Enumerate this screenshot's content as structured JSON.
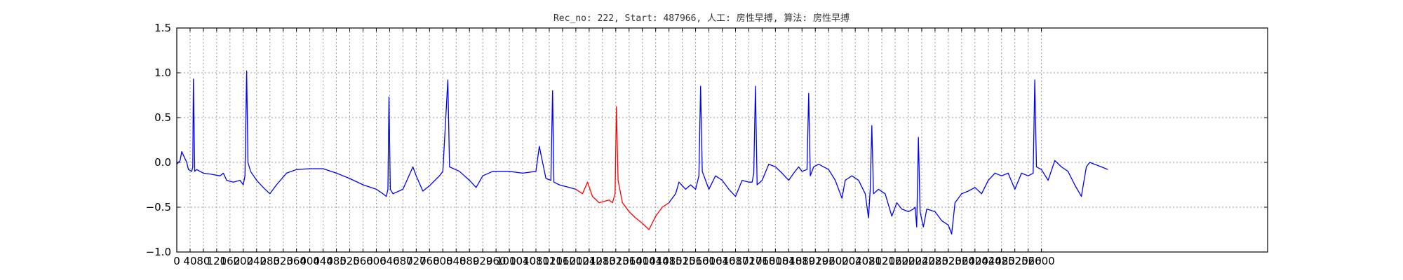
{
  "chart_data": {
    "type": "line",
    "title": "Rec_no: 222, Start: 487966, 人工: 房性早搏, 算法: 房性早搏",
    "xlabel": "",
    "ylabel": "",
    "xlim": [
      0,
      3280
    ],
    "ylim": [
      -1.0,
      1.5
    ],
    "grid": true,
    "x_ticks": [
      0,
      40,
      80,
      120,
      160,
      200,
      240,
      280,
      320,
      360,
      400,
      440,
      480,
      520,
      560,
      600,
      640,
      680,
      720,
      760,
      800,
      840,
      880,
      920,
      960,
      1000,
      1040,
      1080,
      1120,
      1160,
      1200,
      1240,
      1280,
      1320,
      1360,
      1400,
      1440,
      1480,
      1520,
      1560,
      1600,
      1640,
      1680,
      1720,
      1760,
      1800,
      1840,
      1880,
      1920,
      1960,
      2000,
      2040,
      2080,
      2120,
      2160,
      2200,
      2240,
      2280,
      2320,
      2360,
      2400,
      2440,
      2480,
      2520,
      2560,
      2600
    ],
    "x_tick_labels": [
      "0",
      "40",
      "80",
      "120",
      "160",
      "200",
      "240",
      "280",
      "320",
      "360",
      "400",
      "440",
      "480",
      "520",
      "560",
      "600",
      "640",
      "680",
      "720",
      "760",
      "800",
      "840",
      "880",
      "920",
      "960",
      "1000",
      "1040",
      "1080",
      "1120",
      "1160",
      "1200",
      "1240",
      "1280",
      "1320",
      "1360",
      "1400",
      "1440",
      "1480",
      "1520",
      "1560",
      "1600",
      "1640",
      "1680",
      "1720",
      "1760",
      "1800",
      "1840",
      "1880",
      "1920",
      "1960",
      "2000",
      "2040",
      "2080",
      "2120",
      "2160",
      "2200",
      "2240",
      "2280",
      "2320",
      "2360",
      "2400",
      "2440",
      "2480",
      "2520",
      "2560",
      "2600"
    ],
    "y_ticks": [
      -1.0,
      -0.5,
      0.0,
      0.5,
      1.0,
      1.5
    ],
    "y_tick_labels": [
      "−1.0",
      "−0.5",
      "0.0",
      "0.5",
      "1.0",
      "1.5"
    ],
    "series": [
      {
        "color": "#0000ff",
        "points": [
          [
            0,
            -0.02
          ],
          [
            10,
            0.02
          ],
          [
            15,
            0.12
          ],
          [
            20,
            0.08
          ],
          [
            30,
            0.0
          ],
          [
            35,
            -0.08
          ],
          [
            45,
            -0.1
          ],
          [
            48,
            -0.05
          ],
          [
            50,
            0.93
          ],
          [
            54,
            -0.1
          ],
          [
            60,
            -0.08
          ],
          [
            80,
            -0.12
          ],
          [
            100,
            -0.13
          ],
          [
            130,
            -0.15
          ],
          [
            140,
            -0.12
          ],
          [
            150,
            -0.2
          ],
          [
            170,
            -0.22
          ],
          [
            190,
            -0.2
          ],
          [
            200,
            -0.25
          ],
          [
            205,
            -0.15
          ],
          [
            210,
            1.02
          ],
          [
            214,
            0.0
          ],
          [
            222,
            -0.1
          ],
          [
            240,
            -0.2
          ],
          [
            260,
            -0.28
          ],
          [
            280,
            -0.35
          ],
          [
            300,
            -0.25
          ],
          [
            330,
            -0.12
          ],
          [
            360,
            -0.08
          ],
          [
            400,
            -0.07
          ],
          [
            440,
            -0.07
          ],
          [
            480,
            -0.12
          ],
          [
            520,
            -0.18
          ],
          [
            560,
            -0.25
          ],
          [
            600,
            -0.3
          ],
          [
            620,
            -0.35
          ],
          [
            630,
            -0.38
          ],
          [
            635,
            -0.3
          ],
          [
            638,
            0.73
          ],
          [
            642,
            -0.3
          ],
          [
            650,
            -0.35
          ],
          [
            680,
            -0.3
          ],
          [
            710,
            -0.05
          ],
          [
            720,
            -0.15
          ],
          [
            740,
            -0.32
          ],
          [
            760,
            -0.26
          ],
          [
            790,
            -0.15
          ],
          [
            800,
            -0.1
          ],
          [
            815,
            0.92
          ],
          [
            820,
            -0.05
          ],
          [
            850,
            -0.1
          ],
          [
            880,
            -0.2
          ],
          [
            900,
            -0.28
          ],
          [
            920,
            -0.15
          ],
          [
            950,
            -0.1
          ],
          [
            1000,
            -0.1
          ],
          [
            1040,
            -0.12
          ],
          [
            1080,
            -0.1
          ],
          [
            1090,
            0.18
          ],
          [
            1100,
            0.0
          ],
          [
            1110,
            -0.18
          ],
          [
            1125,
            -0.2
          ],
          [
            1130,
            0.8
          ],
          [
            1134,
            -0.22
          ],
          [
            1150,
            -0.25
          ],
          [
            1180,
            -0.28
          ],
          [
            1200,
            -0.3
          ]
        ]
      },
      {
        "color": "#ff0000",
        "points": [
          [
            1200,
            -0.3
          ],
          [
            1220,
            -0.35
          ],
          [
            1235,
            -0.22
          ],
          [
            1250,
            -0.38
          ],
          [
            1270,
            -0.45
          ],
          [
            1300,
            -0.42
          ],
          [
            1310,
            -0.45
          ],
          [
            1318,
            -0.35
          ],
          [
            1322,
            0.62
          ],
          [
            1327,
            -0.2
          ],
          [
            1340,
            -0.45
          ],
          [
            1360,
            -0.55
          ],
          [
            1380,
            -0.62
          ],
          [
            1400,
            -0.68
          ],
          [
            1420,
            -0.75
          ],
          [
            1440,
            -0.6
          ],
          [
            1460,
            -0.5
          ],
          [
            1480,
            -0.45
          ]
        ]
      },
      {
        "color": "#0000ff",
        "points": [
          [
            1480,
            -0.45
          ],
          [
            1500,
            -0.35
          ],
          [
            1510,
            -0.22
          ],
          [
            1530,
            -0.3
          ],
          [
            1545,
            -0.25
          ],
          [
            1560,
            -0.3
          ],
          [
            1570,
            -0.15
          ],
          [
            1575,
            0.85
          ],
          [
            1580,
            -0.1
          ],
          [
            1600,
            -0.3
          ],
          [
            1620,
            -0.15
          ],
          [
            1640,
            -0.2
          ],
          [
            1660,
            -0.3
          ],
          [
            1680,
            -0.38
          ],
          [
            1700,
            -0.2
          ],
          [
            1720,
            -0.22
          ],
          [
            1730,
            -0.22
          ],
          [
            1735,
            -0.12
          ],
          [
            1740,
            0.85
          ],
          [
            1745,
            -0.25
          ],
          [
            1760,
            -0.2
          ],
          [
            1780,
            -0.02
          ],
          [
            1800,
            -0.05
          ],
          [
            1820,
            -0.12
          ],
          [
            1840,
            -0.2
          ],
          [
            1855,
            -0.12
          ],
          [
            1870,
            -0.05
          ],
          [
            1880,
            -0.1
          ],
          [
            1895,
            -0.08
          ],
          [
            1900,
            0.77
          ],
          [
            1905,
            -0.15
          ],
          [
            1915,
            -0.05
          ],
          [
            1930,
            -0.02
          ],
          [
            1960,
            -0.08
          ],
          [
            1980,
            -0.2
          ],
          [
            2000,
            -0.4
          ],
          [
            2010,
            -0.2
          ],
          [
            2030,
            -0.15
          ],
          [
            2050,
            -0.2
          ],
          [
            2070,
            -0.35
          ],
          [
            2080,
            -0.62
          ],
          [
            2085,
            -0.3
          ],
          [
            2090,
            0.41
          ],
          [
            2095,
            -0.35
          ],
          [
            2110,
            -0.3
          ],
          [
            2130,
            -0.35
          ],
          [
            2150,
            -0.6
          ],
          [
            2165,
            -0.45
          ],
          [
            2180,
            -0.52
          ],
          [
            2200,
            -0.55
          ],
          [
            2215,
            -0.52
          ],
          [
            2220,
            -0.5
          ],
          [
            2225,
            -0.72
          ],
          [
            2230,
            0.28
          ],
          [
            2235,
            -0.55
          ],
          [
            2245,
            -0.72
          ],
          [
            2255,
            -0.52
          ],
          [
            2280,
            -0.55
          ],
          [
            2300,
            -0.65
          ],
          [
            2320,
            -0.7
          ],
          [
            2330,
            -0.8
          ],
          [
            2340,
            -0.45
          ],
          [
            2360,
            -0.35
          ],
          [
            2380,
            -0.32
          ],
          [
            2400,
            -0.28
          ],
          [
            2420,
            -0.35
          ],
          [
            2440,
            -0.2
          ],
          [
            2460,
            -0.12
          ],
          [
            2480,
            -0.15
          ],
          [
            2500,
            -0.12
          ],
          [
            2520,
            -0.3
          ],
          [
            2540,
            -0.12
          ],
          [
            2560,
            -0.15
          ],
          [
            2575,
            -0.12
          ],
          [
            2580,
            0.92
          ],
          [
            2585,
            -0.05
          ],
          [
            2600,
            -0.08
          ],
          [
            2620,
            -0.2
          ],
          [
            2640,
            0.02
          ],
          [
            2660,
            -0.05
          ],
          [
            2680,
            -0.1
          ],
          [
            2700,
            -0.25
          ],
          [
            2720,
            -0.38
          ],
          [
            2735,
            -0.05
          ],
          [
            2745,
            0.0
          ],
          [
            2780,
            -0.05
          ],
          [
            2800,
            -0.08
          ]
        ]
      }
    ]
  }
}
